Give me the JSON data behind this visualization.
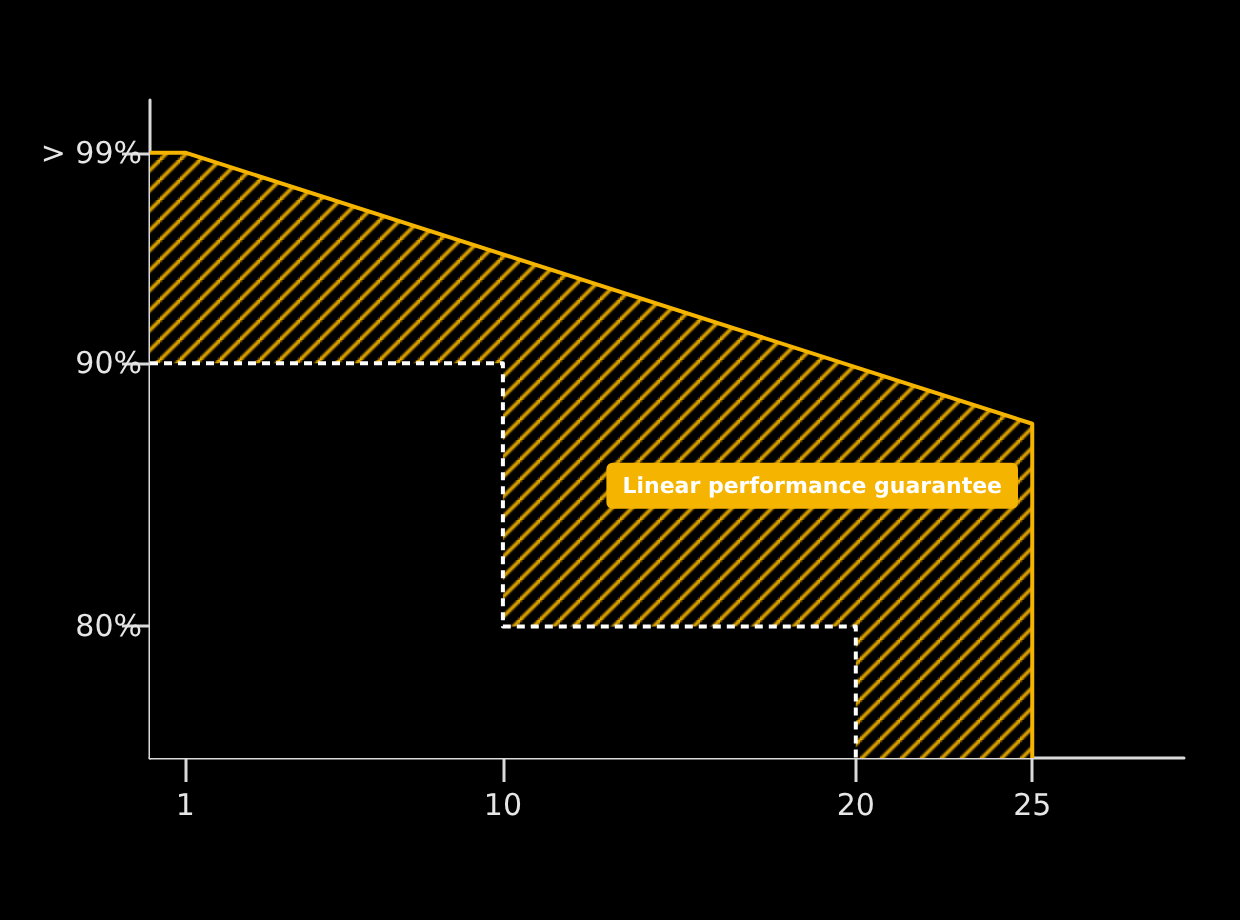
{
  "chart_data": {
    "type": "area",
    "series": [
      {
        "color": "#f5b400",
        "x": [
          0,
          1,
          25,
          25
        ],
        "values": [
          98,
          98,
          87.7,
          75
        ]
      },
      {
        "type": "step",
        "color": "#ffffff",
        "line_style": "dashed",
        "x": [
          0,
          10,
          20,
          20
        ],
        "values": [
          90,
          80,
          80,
          75
        ]
      }
    ],
    "xlim": [
      0,
      29.3
    ],
    "xticks": [
      1,
      10,
      20,
      25
    ],
    "ylim": [
      75,
      100
    ],
    "yticks": [
      {
        "value": 80,
        "label": "80%"
      },
      {
        "value": 90,
        "label": "90%"
      },
      {
        "value": 98,
        "label": "> 99%"
      }
    ],
    "annotations": [
      "Linear performance guarantee"
    ],
    "grid": false
  }
}
